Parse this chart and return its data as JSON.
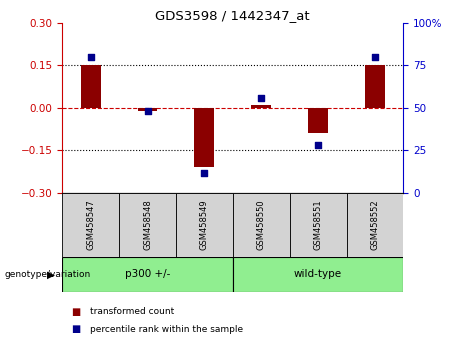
{
  "title": "GDS3598 / 1442347_at",
  "samples": [
    "GSM458547",
    "GSM458548",
    "GSM458549",
    "GSM458550",
    "GSM458551",
    "GSM458552"
  ],
  "bar_values": [
    0.15,
    -0.01,
    -0.21,
    0.01,
    -0.09,
    0.15
  ],
  "scatter_values": [
    80,
    48,
    12,
    56,
    28,
    80
  ],
  "group_data": [
    {
      "label": "p300 +/-",
      "start": 0,
      "end": 3,
      "color": "#90ee90"
    },
    {
      "label": "wild-type",
      "start": 3,
      "end": 6,
      "color": "#90ee90"
    }
  ],
  "bar_color": "#8B0000",
  "scatter_color": "#00008B",
  "ylim": [
    -0.3,
    0.3
  ],
  "y2lim": [
    0,
    100
  ],
  "yticks": [
    -0.3,
    -0.15,
    0,
    0.15,
    0.3
  ],
  "y2ticks": [
    0,
    25,
    50,
    75,
    100
  ],
  "hline_color": "#cc0000",
  "dotted_lines": [
    -0.15,
    0.15
  ],
  "y_left_color": "#cc0000",
  "y_right_color": "#0000cc",
  "bar_width": 0.35,
  "legend_red_label": "transformed count",
  "legend_blue_label": "percentile rank within the sample",
  "genotype_label": "genotype/variation",
  "sample_box_color": "#d3d3d3",
  "figsize": [
    4.61,
    3.54
  ],
  "dpi": 100
}
